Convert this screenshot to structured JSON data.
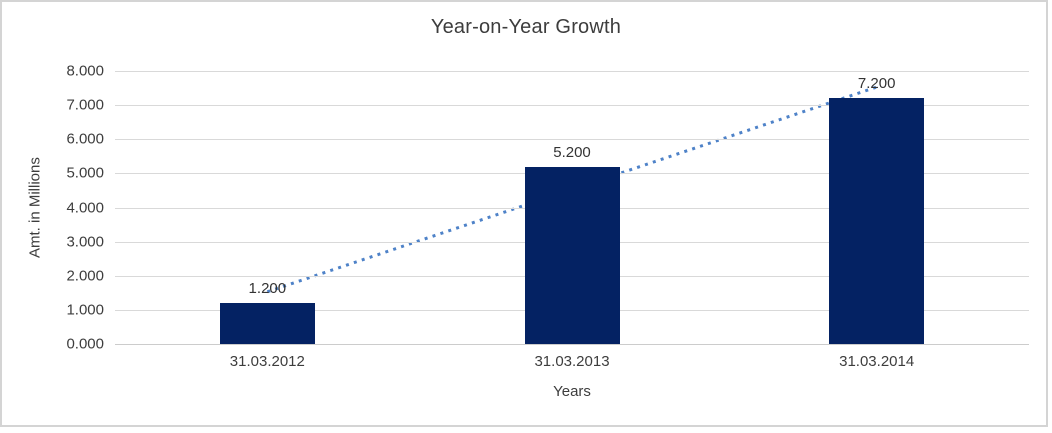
{
  "frame": {
    "background_color": "#ffffff",
    "border_color": "#d4d4d4"
  },
  "chart_data": {
    "type": "bar",
    "title": "Year-on-Year Growth",
    "xlabel": "Years",
    "ylabel": "Amt. in Millions",
    "categories": [
      "31.03.2012",
      "31.03.2013",
      "31.03.2014"
    ],
    "values": [
      1.2,
      5.2,
      7.2
    ],
    "value_labels": [
      "1.200",
      "5.200",
      "7.200"
    ],
    "ylim": [
      0,
      8
    ],
    "ytick_step": 1,
    "ytick_labels": [
      "0.000",
      "1.000",
      "2.000",
      "3.000",
      "4.000",
      "5.000",
      "6.000",
      "7.000",
      "8.000"
    ],
    "grid": true,
    "legend": "none",
    "bar_color": "#042263",
    "gridline_color": "#d9d9d9",
    "axis_line_color": "#cccccc",
    "trendline": {
      "type": "linear",
      "style": "dotted",
      "color": "#4e82c8",
      "start_value": 1.53,
      "end_value": 7.53
    }
  }
}
